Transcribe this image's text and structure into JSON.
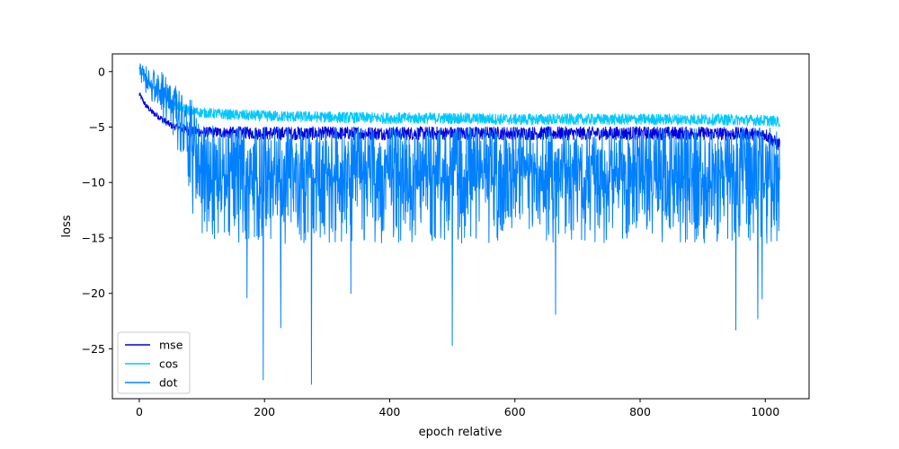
{
  "chart_data": {
    "type": "line",
    "title": "",
    "xlabel": "epoch relative",
    "ylabel": "loss",
    "xlim": [
      -43,
      1070
    ],
    "ylim": [
      -29.5,
      1.6
    ],
    "xticks": [
      0,
      200,
      400,
      600,
      800,
      1000
    ],
    "yticks": [
      0,
      -5,
      -10,
      -15,
      -20,
      -25
    ],
    "grid": false,
    "legend_position": "lower-left",
    "series": [
      {
        "name": "mse",
        "color": "#0000dd",
        "x": [
          0,
          5,
          10,
          20,
          30,
          40,
          50,
          60,
          70,
          80,
          100,
          150,
          200,
          300,
          400,
          500,
          600,
          700,
          800,
          900,
          1000,
          1020
        ],
        "values": [
          -2.0,
          -2.5,
          -3.0,
          -3.6,
          -4.0,
          -4.4,
          -4.8,
          -5.0,
          -5.2,
          -5.3,
          -5.4,
          -5.45,
          -5.5,
          -5.5,
          -5.5,
          -5.5,
          -5.5,
          -5.5,
          -5.5,
          -5.5,
          -5.6,
          -6.5
        ],
        "noise_band": [
          0.3,
          0.6
        ]
      },
      {
        "name": "cos",
        "color": "#00c8ff",
        "x": [
          0,
          5,
          10,
          20,
          30,
          40,
          50,
          60,
          70,
          80,
          100,
          150,
          200,
          300,
          400,
          500,
          600,
          700,
          800,
          900,
          1000,
          1020
        ],
        "values": [
          0.0,
          -0.3,
          -0.7,
          -1.3,
          -1.8,
          -2.3,
          -2.7,
          -3.0,
          -3.3,
          -3.5,
          -3.7,
          -3.9,
          -4.0,
          -4.1,
          -4.2,
          -4.2,
          -4.3,
          -4.3,
          -4.3,
          -4.3,
          -4.4,
          -4.5
        ],
        "noise_band": [
          0.4,
          0.5
        ]
      },
      {
        "name": "dot",
        "color": "#0080ff",
        "x": [
          0,
          5,
          10,
          20,
          30,
          40,
          50,
          60,
          70,
          80,
          90,
          100,
          150,
          200,
          300,
          400,
          500,
          600,
          700,
          800,
          900,
          1000,
          1020
        ],
        "values": [
          0.3,
          0.0,
          -0.5,
          -1.0,
          -1.5,
          -2.2,
          -3.0,
          -4.0,
          -5.0,
          -6.5,
          -8.0,
          -9.0,
          -9.4,
          -9.5,
          -9.5,
          -9.5,
          -9.5,
          -9.5,
          -9.5,
          -9.5,
          -9.5,
          -9.5,
          -9.5
        ],
        "noise_band": [
          4.5,
          4.0
        ],
        "notable_minima": [
          {
            "x": 198,
            "y": -27.8
          },
          {
            "x": 275,
            "y": -28.2
          },
          {
            "x": 500,
            "y": -24.7
          },
          {
            "x": 953,
            "y": -23.3
          },
          {
            "x": 988,
            "y": -22.3
          },
          {
            "x": 226,
            "y": -23.1
          },
          {
            "x": 665,
            "y": -21.9
          },
          {
            "x": 995,
            "y": -20.5
          },
          {
            "x": 172,
            "y": -20.4
          },
          {
            "x": 338,
            "y": -20.0
          }
        ]
      }
    ]
  }
}
